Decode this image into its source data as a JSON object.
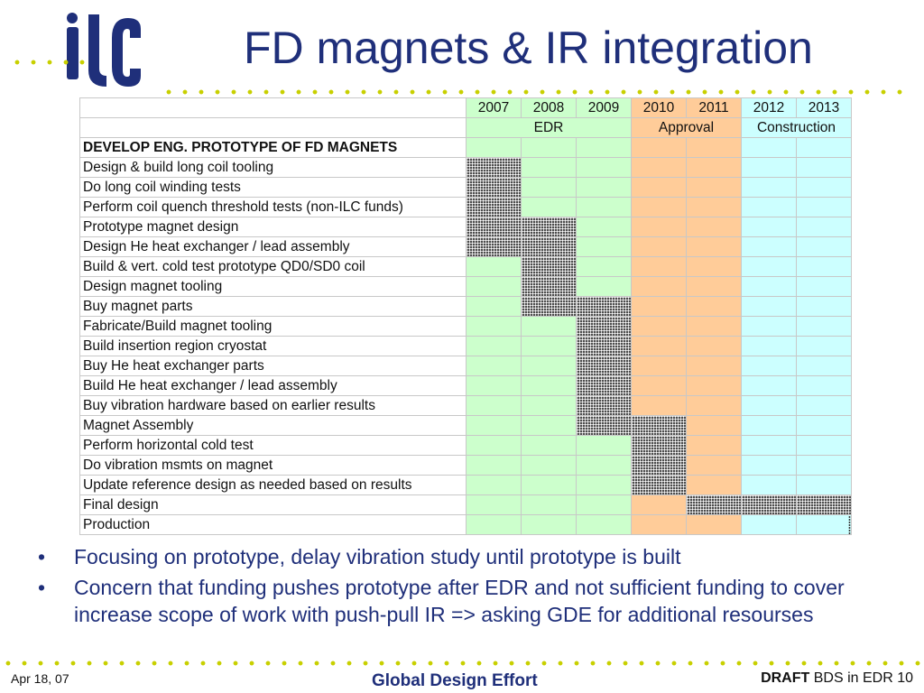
{
  "slide": {
    "title": "FD magnets & IR integration",
    "logo": "ilc"
  },
  "gantt": {
    "years": [
      "2007",
      "2008",
      "2009",
      "2010",
      "2011",
      "2012",
      "2013"
    ],
    "phases": [
      {
        "label": "EDR",
        "span": 3,
        "color": "#ccffcc"
      },
      {
        "label": "Approval",
        "span": 2,
        "color": "#ffcc99"
      },
      {
        "label": "Construction",
        "span": 2,
        "color": "#ccffff"
      }
    ],
    "section_title": "DEVELOP ENG. PROTOTYPE OF FD MAGNETS",
    "tasks": [
      {
        "label": "Design & build long coil tooling",
        "bars": [
          0
        ]
      },
      {
        "label": "Do long coil winding tests",
        "bars": [
          0
        ]
      },
      {
        "label": "Perform coil quench threshold tests (non-ILC funds)",
        "bars": [
          0
        ]
      },
      {
        "label": "Prototype magnet design",
        "bars": [
          0,
          1
        ]
      },
      {
        "label": "Design He heat exchanger / lead assembly",
        "bars": [
          0,
          1
        ]
      },
      {
        "label": "Build & vert. cold test prototype QD0/SD0 coil",
        "bars": [
          1
        ]
      },
      {
        "label": "Design magnet tooling",
        "bars": [
          1
        ]
      },
      {
        "label": "Buy magnet parts",
        "bars": [
          1,
          2
        ]
      },
      {
        "label": "Fabricate/Build magnet tooling",
        "bars": [
          2
        ]
      },
      {
        "label": "Build insertion region cryostat",
        "bars": [
          2
        ]
      },
      {
        "label": "Buy He heat exchanger parts",
        "bars": [
          2
        ]
      },
      {
        "label": "Build He heat exchanger / lead assembly",
        "bars": [
          2
        ]
      },
      {
        "label": "Buy vibration hardware based on earlier results",
        "bars": [
          2
        ]
      },
      {
        "label": "Magnet Assembly",
        "bars": [
          2,
          3
        ]
      },
      {
        "label": "Perform horizontal cold test",
        "bars": [
          3
        ]
      },
      {
        "label": "Do vibration msmts on magnet",
        "bars": [
          3
        ]
      },
      {
        "label": "Update reference design as needed based on results",
        "bars": [
          3
        ]
      },
      {
        "label": "Final design",
        "bars": [
          4,
          5,
          6
        ]
      },
      {
        "label": "Production",
        "bars": [],
        "end_marker": 6
      }
    ]
  },
  "bullets": [
    "Focusing on prototype, delay vibration study until prototype is built",
    "Concern that funding pushes prototype after EDR and not sufficient funding to cover increase scope of work with push-pull IR => asking GDE for additional resourses"
  ],
  "bullet_symbol": "•",
  "footer": {
    "date": "Apr 18, 07",
    "center": "Global Design Effort",
    "draft": "DRAFT",
    "right": "BDS in EDR 10"
  },
  "colors": {
    "title": "#1f2f7a",
    "dots": "#c8d000",
    "edr": "#ccffcc",
    "approval": "#ffcc99",
    "construction": "#ccffff"
  }
}
